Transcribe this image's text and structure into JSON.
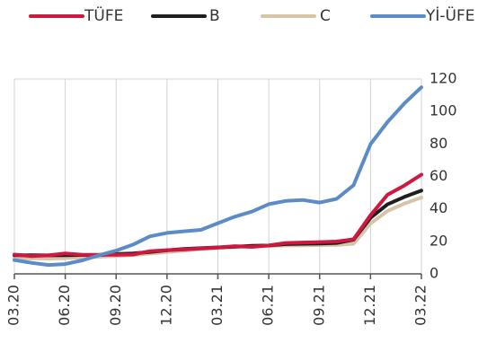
{
  "chart_data": {
    "type": "line",
    "x": [
      "03.20",
      "04.20",
      "05.20",
      "06.20",
      "07.20",
      "08.20",
      "09.20",
      "10.20",
      "11.20",
      "12.20",
      "01.21",
      "02.21",
      "03.21",
      "04.21",
      "05.21",
      "06.21",
      "07.21",
      "08.21",
      "09.21",
      "10.21",
      "11.21",
      "12.21",
      "01.22",
      "02.22",
      "03.22"
    ],
    "x_tick_labels": [
      "03.20",
      "06.20",
      "09.20",
      "12.20",
      "03.21",
      "06.21",
      "09.21",
      "12.21",
      "03.22"
    ],
    "y_ticks": [
      0,
      20,
      40,
      60,
      80,
      100,
      120
    ],
    "ylim": [
      0,
      120
    ],
    "y_axis_side": "right",
    "grid": {
      "vertical": true,
      "horizontal": false
    },
    "legend_position": "top",
    "title": "",
    "xlabel": "",
    "ylabel": "",
    "series": [
      {
        "name": "TÜFE",
        "color": "#d0173f",
        "values": [
          11.9,
          10.9,
          11.4,
          12.6,
          11.8,
          11.8,
          11.8,
          11.9,
          14.0,
          14.6,
          15.0,
          15.6,
          16.2,
          17.1,
          16.6,
          17.5,
          19.0,
          19.3,
          19.6,
          19.9,
          21.3,
          36.1,
          48.7,
          54.4,
          61.1
        ]
      },
      {
        "name": "B",
        "color": "#1e1e1e",
        "values": [
          11.5,
          11.5,
          11.4,
          11.5,
          11.6,
          11.6,
          12.2,
          12.6,
          13.5,
          14.5,
          15.3,
          15.8,
          16.3,
          16.7,
          17.3,
          17.5,
          18.3,
          18.5,
          18.7,
          19.0,
          21.0,
          34.5,
          42.8,
          47.4,
          51.3
        ]
      },
      {
        "name": "C",
        "color": "#d5c4a8",
        "values": [
          9.7,
          9.5,
          9.4,
          9.7,
          10.2,
          10.5,
          11.0,
          11.6,
          12.5,
          13.4,
          14.3,
          15.3,
          16.0,
          16.5,
          17.0,
          17.2,
          17.5,
          17.6,
          17.7,
          17.8,
          18.5,
          31.0,
          38.7,
          43.3,
          47.0
        ]
      },
      {
        "name": "Yİ-ÜFE",
        "color": "#5b8cc7",
        "values": [
          8.5,
          6.8,
          5.5,
          6.0,
          8.3,
          11.5,
          14.3,
          18.0,
          23.1,
          25.2,
          26.2,
          27.1,
          31.2,
          35.2,
          38.3,
          42.9,
          44.9,
          45.5,
          43.9,
          46.2,
          54.6,
          79.9,
          93.5,
          105.0,
          114.9
        ]
      }
    ]
  }
}
